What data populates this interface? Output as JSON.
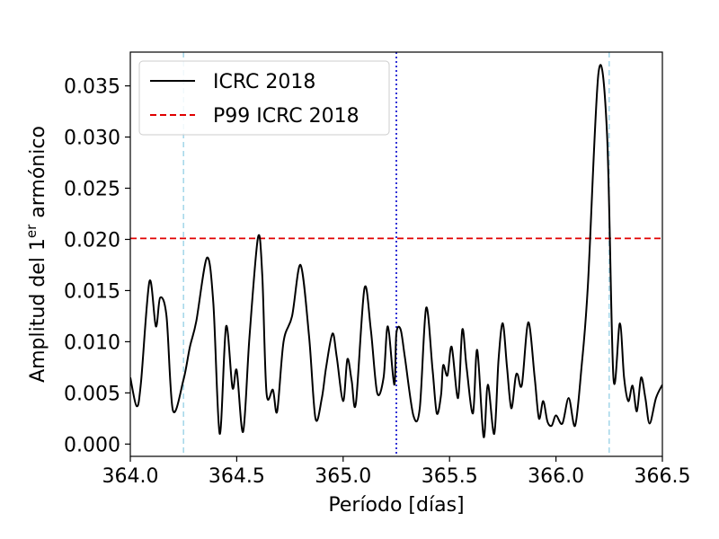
{
  "chart_data": {
    "type": "line",
    "xlabel": "Período [días]",
    "ylabel_prefix": "Amplitud del 1",
    "ylabel_superscript": "er",
    "ylabel_suffix": " armónico",
    "xlim": [
      364.0,
      366.5
    ],
    "ylim": [
      -0.0012,
      0.0383
    ],
    "x_ticks": [
      364.0,
      364.5,
      365.0,
      365.5,
      366.0,
      366.5
    ],
    "x_tick_labels": [
      "364.0",
      "364.5",
      "365.0",
      "365.5",
      "366.0",
      "366.5"
    ],
    "y_ticks": [
      0.0,
      0.005,
      0.01,
      0.015,
      0.02,
      0.025,
      0.03,
      0.035
    ],
    "y_tick_labels": [
      "0.000",
      "0.005",
      "0.010",
      "0.015",
      "0.020",
      "0.025",
      "0.030",
      "0.035"
    ],
    "grid": false,
    "legend_position": "top-left",
    "series": [
      {
        "name": "ICRC 2018",
        "color": "#000000",
        "style": "solid",
        "x": [
          364.0,
          364.03,
          364.05,
          364.09,
          364.12,
          364.14,
          364.17,
          364.2,
          364.25,
          364.28,
          364.31,
          364.36,
          364.39,
          364.42,
          364.45,
          364.48,
          364.5,
          364.53,
          364.56,
          364.6,
          364.62,
          364.64,
          364.67,
          364.69,
          364.72,
          364.76,
          364.8,
          364.84,
          364.87,
          364.9,
          364.92,
          364.95,
          364.97,
          365.0,
          365.02,
          365.04,
          365.06,
          365.1,
          365.13,
          365.16,
          365.19,
          365.21,
          365.24,
          365.25,
          365.27,
          365.29,
          365.33,
          365.36,
          365.39,
          365.42,
          365.44,
          365.46,
          365.47,
          365.49,
          365.51,
          365.54,
          365.56,
          365.58,
          365.61,
          365.63,
          365.66,
          365.68,
          365.71,
          365.73,
          365.75,
          365.77,
          365.79,
          365.81,
          365.82,
          365.84,
          365.87,
          365.9,
          365.92,
          365.94,
          365.96,
          365.98,
          366.0,
          366.03,
          366.06,
          366.09,
          366.12,
          366.15,
          366.2,
          366.24,
          366.27,
          366.3,
          366.32,
          366.34,
          366.36,
          366.38,
          366.4,
          366.42,
          366.44,
          366.47,
          366.5
        ],
        "y": [
          0.0065,
          0.0037,
          0.006,
          0.0159,
          0.0115,
          0.0143,
          0.0125,
          0.0033,
          0.0063,
          0.0095,
          0.012,
          0.0182,
          0.0138,
          0.001,
          0.0115,
          0.0055,
          0.0072,
          0.0012,
          0.0105,
          0.0202,
          0.0165,
          0.005,
          0.0053,
          0.0032,
          0.01,
          0.0125,
          0.0175,
          0.0105,
          0.0025,
          0.0045,
          0.0075,
          0.0108,
          0.0085,
          0.0042,
          0.0083,
          0.0062,
          0.004,
          0.0152,
          0.0112,
          0.005,
          0.0065,
          0.0115,
          0.0058,
          0.0108,
          0.0112,
          0.0085,
          0.0028,
          0.0035,
          0.0133,
          0.0073,
          0.003,
          0.0048,
          0.0077,
          0.0067,
          0.0095,
          0.0045,
          0.0112,
          0.0075,
          0.003,
          0.0092,
          0.0007,
          0.0058,
          0.001,
          0.0082,
          0.0118,
          0.0075,
          0.0035,
          0.0065,
          0.0068,
          0.0058,
          0.0119,
          0.0065,
          0.0025,
          0.0042,
          0.0022,
          0.0018,
          0.0028,
          0.002,
          0.0045,
          0.0018,
          0.0075,
          0.0155,
          0.0363,
          0.0303,
          0.0065,
          0.0118,
          0.0065,
          0.0042,
          0.0057,
          0.0032,
          0.0065,
          0.0045,
          0.002,
          0.0045,
          0.0058
        ]
      },
      {
        "name": "P99 ICRC 2018",
        "color": "#e00000",
        "style": "dashed",
        "y_constant": 0.0201
      }
    ],
    "vertical_lines": [
      {
        "x": 364.25,
        "color": "#a8d8ea",
        "style": "dashed"
      },
      {
        "x": 365.25,
        "color": "#0000cc",
        "style": "dotted"
      },
      {
        "x": 366.25,
        "color": "#a8d8ea",
        "style": "dashed"
      }
    ]
  }
}
